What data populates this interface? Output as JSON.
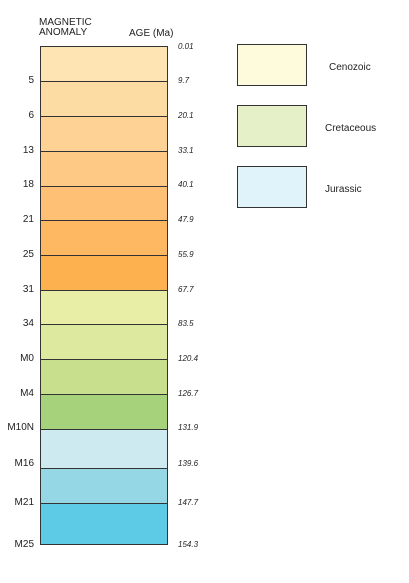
{
  "header": {
    "magnetic": "MAGNETIC\nANOMALY",
    "age": "AGE (Ma)"
  },
  "top_age": "0.01",
  "intervals": [
    {
      "anomaly": "5",
      "age": "9.7",
      "color": "#fde4b2"
    },
    {
      "anomaly": "6",
      "age": "20.1",
      "color": "#fddca4"
    },
    {
      "anomaly": "13",
      "age": "33.1",
      "color": "#fdd294"
    },
    {
      "anomaly": "18",
      "age": "40.1",
      "color": "#fdc985"
    },
    {
      "anomaly": "21",
      "age": "47.9",
      "color": "#fdc074"
    },
    {
      "anomaly": "25",
      "age": "55.9",
      "color": "#fdb861"
    },
    {
      "anomaly": "31",
      "age": "67.7",
      "color": "#fdb14f"
    },
    {
      "anomaly": "34",
      "age": "83.5",
      "color": "#e9eea6"
    },
    {
      "anomaly": "M0",
      "age": "120.4",
      "color": "#dce99e"
    },
    {
      "anomaly": "M4",
      "age": "126.7",
      "color": "#c8df8e"
    },
    {
      "anomaly": "M10N",
      "age": "131.9",
      "color": "#a7d27c"
    },
    {
      "anomaly": "M16",
      "age": "139.6",
      "color": "#cdeaf1"
    },
    {
      "anomaly": "M21",
      "age": "147.7",
      "color": "#96d7e6"
    },
    {
      "anomaly": "M25",
      "age": "154.3",
      "color": "#5ecbe6"
    }
  ],
  "legend": [
    {
      "label": "Cenozoic",
      "color": "#fefadc"
    },
    {
      "label": "Cretaceous",
      "color": "#e6f0c8"
    },
    {
      "label": "Jurassic",
      "color": "#e0f3fb"
    }
  ]
}
